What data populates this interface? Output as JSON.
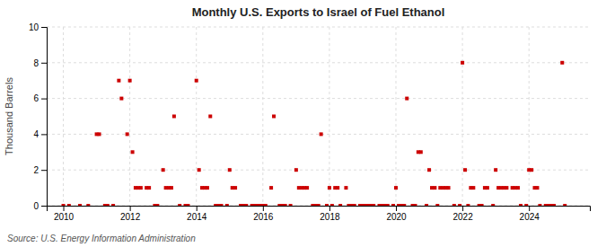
{
  "chart_data": {
    "type": "scatter",
    "title": "Monthly U.S. Exports to Israel of Fuel Ethanol",
    "ylabel": "Thousand Barrels",
    "source": "Source: U.S. Energy Information Administration",
    "color": "#cc0000",
    "marker": "square",
    "grid": true,
    "xlim": [
      2009.5,
      2025.83
    ],
    "xticks": [
      2010,
      2012,
      2014,
      2016,
      2018,
      2020,
      2022,
      2024
    ],
    "ylim": [
      0,
      10
    ],
    "yticks": [
      0,
      2,
      4,
      6,
      8,
      10
    ],
    "x": [
      2010.0,
      2010.17,
      2010.5,
      2010.75,
      2011.0,
      2011.08,
      2011.25,
      2011.33,
      2011.5,
      2011.67,
      2011.75,
      2011.92,
      2012.0,
      2012.08,
      2012.17,
      2012.25,
      2012.33,
      2012.5,
      2012.58,
      2012.75,
      2012.83,
      2013.0,
      2013.08,
      2013.17,
      2013.25,
      2013.33,
      2013.5,
      2013.67,
      2013.75,
      2014.0,
      2014.08,
      2014.17,
      2014.25,
      2014.33,
      2014.42,
      2014.58,
      2014.67,
      2014.75,
      2014.92,
      2015.0,
      2015.08,
      2015.17,
      2015.33,
      2015.42,
      2015.5,
      2015.67,
      2015.75,
      2015.83,
      2015.92,
      2016.0,
      2016.08,
      2016.25,
      2016.33,
      2016.5,
      2016.58,
      2016.67,
      2016.83,
      2017.0,
      2017.08,
      2017.17,
      2017.25,
      2017.33,
      2017.5,
      2017.58,
      2017.67,
      2017.75,
      2017.92,
      2018.0,
      2018.08,
      2018.17,
      2018.25,
      2018.33,
      2018.5,
      2018.58,
      2018.67,
      2018.75,
      2018.92,
      2019.0,
      2019.08,
      2019.17,
      2019.25,
      2019.33,
      2019.5,
      2019.58,
      2019.67,
      2019.75,
      2019.92,
      2020.0,
      2020.08,
      2020.17,
      2020.25,
      2020.33,
      2020.5,
      2020.58,
      2020.67,
      2020.75,
      2020.92,
      2021.0,
      2021.08,
      2021.17,
      2021.25,
      2021.33,
      2021.42,
      2021.5,
      2021.58,
      2021.75,
      2021.92,
      2022.0,
      2022.08,
      2022.17,
      2022.25,
      2022.33,
      2022.5,
      2022.58,
      2022.67,
      2022.75,
      2022.92,
      2023.0,
      2023.08,
      2023.17,
      2023.25,
      2023.33,
      2023.5,
      2023.58,
      2023.67,
      2023.75,
      2023.92,
      2024.0,
      2024.08,
      2024.17,
      2024.25,
      2024.33,
      2024.5,
      2024.58,
      2024.67,
      2024.75,
      2025.0,
      2025.08
    ],
    "values": [
      0,
      0,
      0,
      0,
      4,
      4,
      0,
      0,
      0,
      7,
      6,
      4,
      7,
      3,
      1,
      1,
      1,
      1,
      1,
      0,
      0,
      2,
      1,
      1,
      1,
      5,
      0,
      0,
      0,
      7,
      2,
      1,
      1,
      1,
      5,
      0,
      0,
      0,
      0,
      2,
      1,
      1,
      0,
      0,
      0,
      0,
      0,
      0,
      0,
      0,
      0,
      1,
      5,
      0,
      0,
      0,
      0,
      2,
      1,
      1,
      1,
      1,
      0,
      0,
      0,
      4,
      0,
      1,
      0,
      1,
      1,
      0,
      1,
      0,
      0,
      0,
      0,
      0,
      0,
      0,
      0,
      0,
      0,
      0,
      0,
      0,
      0,
      1,
      0,
      0,
      0,
      6,
      0,
      0,
      3,
      3,
      0,
      2,
      1,
      1,
      0,
      1,
      1,
      1,
      1,
      0,
      0,
      8,
      2,
      0,
      1,
      1,
      0,
      0,
      1,
      1,
      0,
      2,
      1,
      1,
      1,
      1,
      1,
      1,
      1,
      0,
      0,
      2,
      2,
      1,
      1,
      0,
      0,
      0,
      0,
      0,
      8,
      0
    ]
  }
}
